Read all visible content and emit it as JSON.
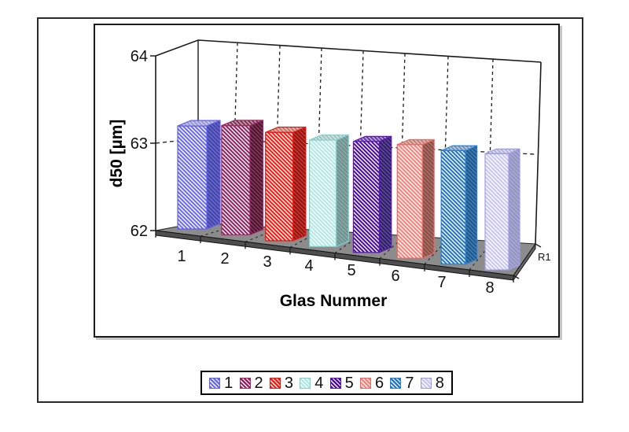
{
  "chart_data": {
    "type": "bar",
    "projection": "3d-column",
    "title": "",
    "xlabel": "Glas Nummer",
    "ylabel": "d50 [µm]",
    "categories": [
      "1",
      "2",
      "3",
      "4",
      "5",
      "6",
      "7",
      "8"
    ],
    "values": [
      63.19,
      63.24,
      63.21,
      63.17,
      63.2,
      63.21,
      63.19,
      63.2
    ],
    "series_label": "R1",
    "ylim": [
      62,
      64
    ],
    "yticks": [
      "62",
      "63",
      "64"
    ],
    "grid": "dashed",
    "legend_position": "bottom",
    "hatch": "diagonal-down-white-stripes",
    "floor_color": "#8C8C8C",
    "axis_color": "#1a1a1a",
    "bar_styles": [
      {
        "front": "#6B6BF0",
        "side": "#4444B0",
        "top": "#9898D4",
        "edge": "#6060E8"
      },
      {
        "front": "#962064",
        "side": "#561030",
        "top": "#7C3A54",
        "edge": "#A02868"
      },
      {
        "front": "#FF1A0E",
        "side": "#A01008",
        "top": "#C87468",
        "edge": "#E81410"
      },
      {
        "front": "#B0E8E4",
        "side": "#6E9290",
        "top": "#A4C4C0",
        "edge": "#7CD2CE"
      },
      {
        "front": "#4E0CA2",
        "side": "#321E6E",
        "top": "#6940A4",
        "edge": "#5C14B8"
      },
      {
        "front": "#FA8078",
        "side": "#8E4C44",
        "top": "#C08078",
        "edge": "#E86A62"
      },
      {
        "front": "#2276C6",
        "side": "#1A5A94",
        "top": "#7694B8",
        "edge": "#2A80D0"
      },
      {
        "front": "#C6C6F4",
        "side": "#9494C4",
        "top": "#B4B4D8",
        "edge": "#9C9CE4"
      }
    ],
    "legend_labels": [
      "1",
      "2",
      "3",
      "4",
      "5",
      "6",
      "7",
      "8"
    ]
  }
}
